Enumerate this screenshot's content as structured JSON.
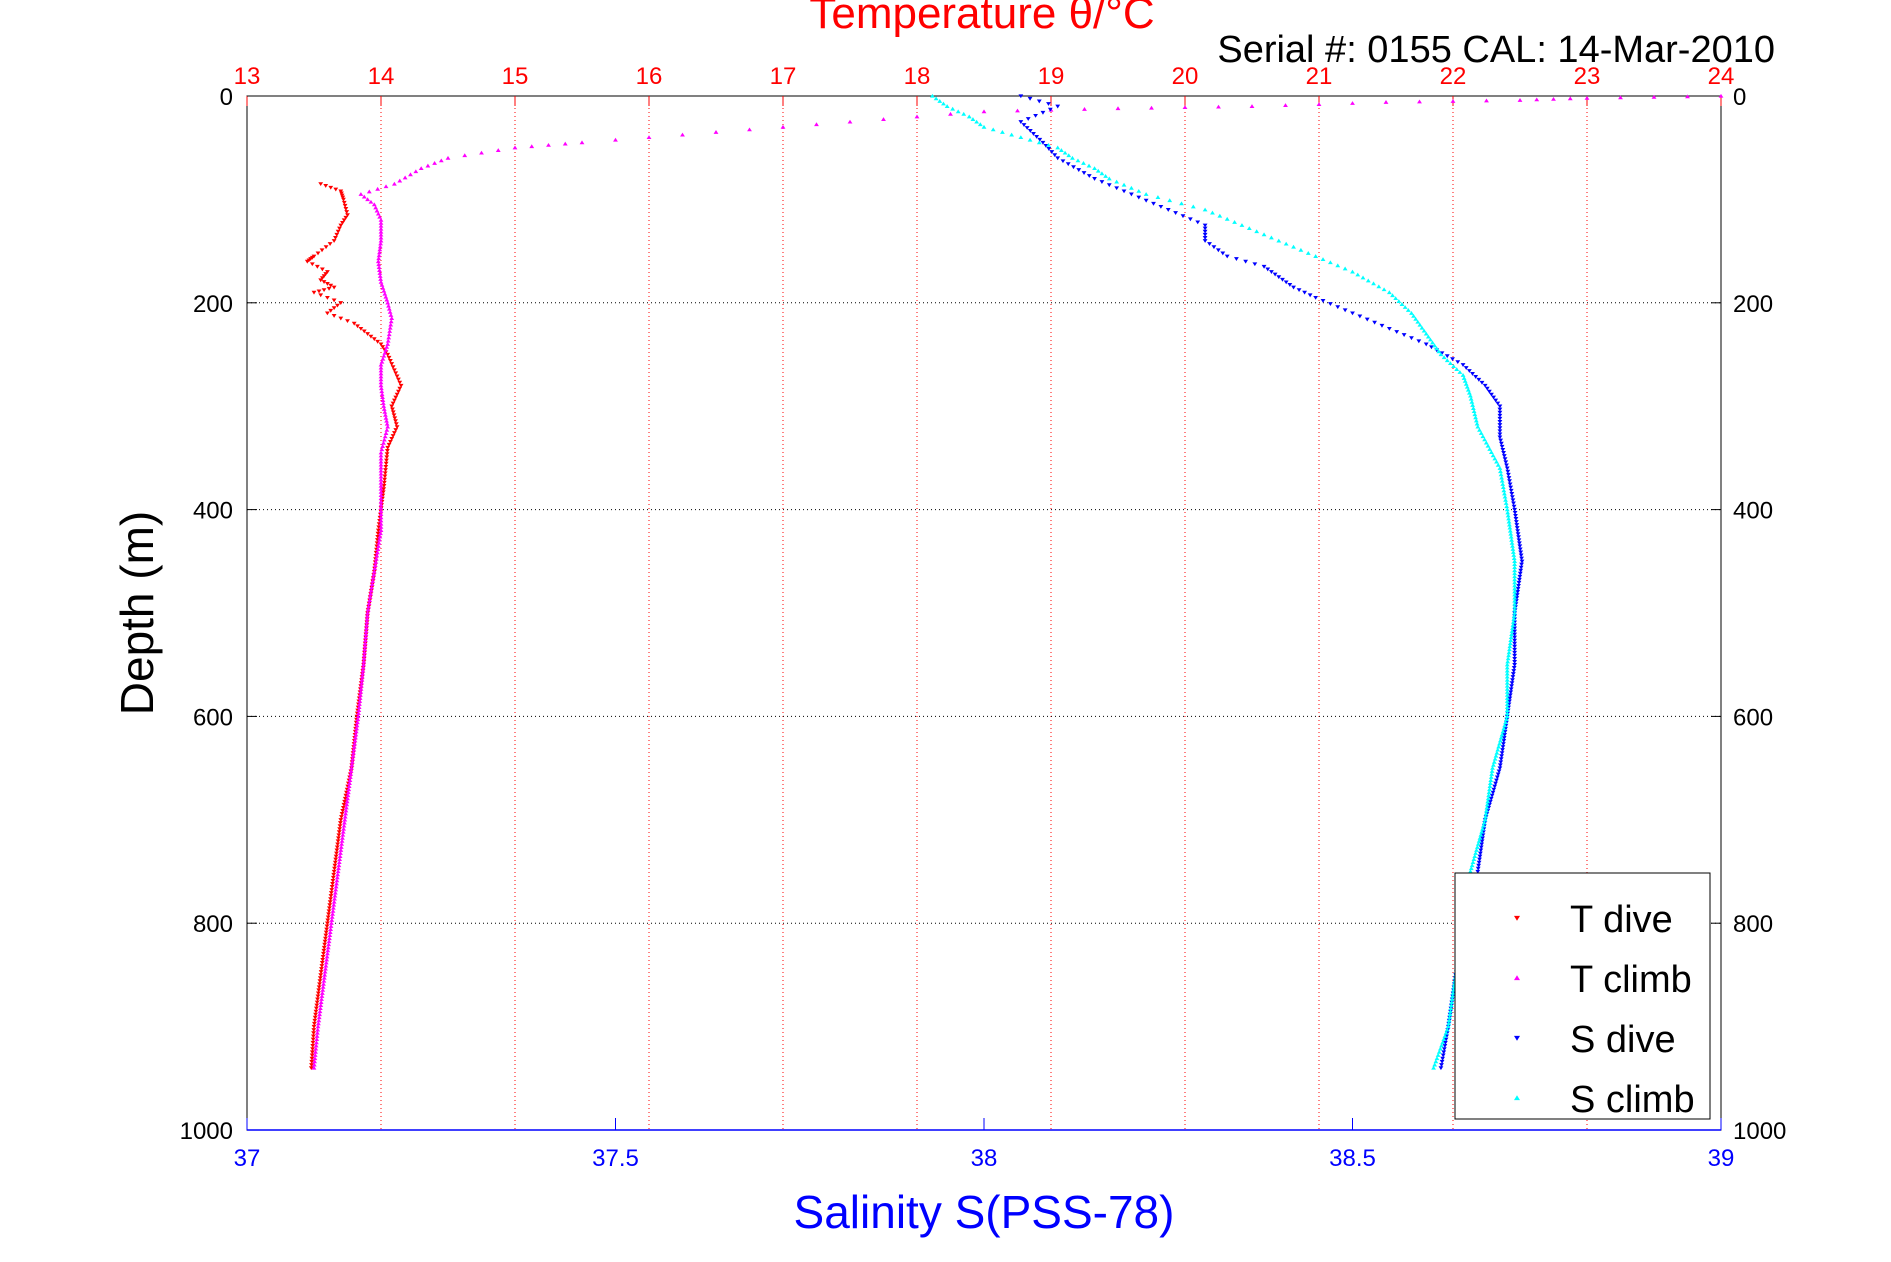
{
  "chart_data": {
    "type": "scatter",
    "title": "Temperature θ/°C",
    "subtitle": "Serial #: 0155  CAL: 14-Mar-2010",
    "xlabel": "Salinity S(PSS-78)",
    "ylabel": "Depth (m)",
    "top_axis": {
      "label": "Temperature θ/°C",
      "range": [
        13,
        24
      ],
      "ticks": [
        "13",
        "14",
        "15",
        "16",
        "17",
        "18",
        "19",
        "20",
        "21",
        "22",
        "23",
        "24"
      ],
      "color": "#ff0000"
    },
    "bottom_axis": {
      "label": "Salinity S(PSS-78)",
      "range": [
        37,
        39
      ],
      "ticks": [
        "37",
        "37.5",
        "38",
        "38.5",
        "39"
      ],
      "color": "#0000ff"
    },
    "y_axis": {
      "range": [
        0,
        1000
      ],
      "reversed": true,
      "ticks": [
        "0",
        "200",
        "400",
        "600",
        "800",
        "1000"
      ]
    },
    "grid": true,
    "legend": {
      "placement": "bottom-right",
      "entries": [
        "T dive",
        "T climb",
        "S dive",
        "S climb"
      ]
    },
    "series": [
      {
        "name": "T dive",
        "axis": "temperature",
        "color": "#ff0000",
        "marker": "triangle-down",
        "points": [
          [
            13.55,
            85
          ],
          [
            13.7,
            92
          ],
          [
            13.72,
            100
          ],
          [
            13.75,
            115
          ],
          [
            13.7,
            125
          ],
          [
            13.65,
            140
          ],
          [
            13.5,
            155
          ],
          [
            13.45,
            160
          ],
          [
            13.6,
            170
          ],
          [
            13.55,
            178
          ],
          [
            13.65,
            185
          ],
          [
            13.5,
            190
          ],
          [
            13.7,
            200
          ],
          [
            13.6,
            210
          ],
          [
            13.8,
            220
          ],
          [
            13.9,
            230
          ],
          [
            14.0,
            240
          ],
          [
            14.05,
            250
          ],
          [
            14.1,
            265
          ],
          [
            14.15,
            280
          ],
          [
            14.08,
            300
          ],
          [
            14.12,
            320
          ],
          [
            14.05,
            340
          ],
          [
            14.02,
            380
          ],
          [
            13.98,
            420
          ],
          [
            13.95,
            460
          ],
          [
            13.9,
            500
          ],
          [
            13.87,
            550
          ],
          [
            13.82,
            600
          ],
          [
            13.78,
            650
          ],
          [
            13.7,
            700
          ],
          [
            13.65,
            750
          ],
          [
            13.6,
            800
          ],
          [
            13.55,
            850
          ],
          [
            13.5,
            900
          ],
          [
            13.48,
            940
          ]
        ]
      },
      {
        "name": "T climb",
        "axis": "temperature",
        "color": "#ff00ff",
        "marker": "triangle-up",
        "points": [
          [
            24,
            0
          ],
          [
            23.0,
            2
          ],
          [
            22.5,
            4
          ],
          [
            21.5,
            6
          ],
          [
            20.5,
            10
          ],
          [
            19.5,
            12
          ],
          [
            18.5,
            15
          ],
          [
            17.5,
            25
          ],
          [
            16.5,
            35
          ],
          [
            15.5,
            45
          ],
          [
            15.0,
            50
          ],
          [
            14.5,
            60
          ],
          [
            14.3,
            70
          ],
          [
            14.1,
            85
          ],
          [
            13.85,
            95
          ],
          [
            13.95,
            105
          ],
          [
            14.0,
            120
          ],
          [
            14.0,
            140
          ],
          [
            13.98,
            160
          ],
          [
            14.0,
            180
          ],
          [
            14.05,
            200
          ],
          [
            14.08,
            215
          ],
          [
            14.05,
            240
          ],
          [
            14.0,
            260
          ],
          [
            14.0,
            280
          ],
          [
            14.02,
            300
          ],
          [
            14.05,
            320
          ],
          [
            14.0,
            345
          ],
          [
            14.0,
            380
          ],
          [
            14.0,
            420
          ],
          [
            13.95,
            460
          ],
          [
            13.9,
            500
          ],
          [
            13.87,
            550
          ],
          [
            13.83,
            600
          ],
          [
            13.78,
            650
          ],
          [
            13.73,
            700
          ],
          [
            13.68,
            750
          ],
          [
            13.63,
            800
          ],
          [
            13.58,
            850
          ],
          [
            13.53,
            900
          ],
          [
            13.5,
            940
          ]
        ]
      },
      {
        "name": "S dive",
        "axis": "salinity",
        "color": "#0000ff",
        "marker": "triangle-down",
        "points": [
          [
            38.05,
            0
          ],
          [
            38.1,
            10
          ],
          [
            38.05,
            25
          ],
          [
            38.08,
            45
          ],
          [
            38.1,
            60
          ],
          [
            38.15,
            80
          ],
          [
            38.2,
            95
          ],
          [
            38.25,
            110
          ],
          [
            38.3,
            125
          ],
          [
            38.3,
            140
          ],
          [
            38.33,
            155
          ],
          [
            38.38,
            165
          ],
          [
            38.4,
            175
          ],
          [
            38.42,
            185
          ],
          [
            38.45,
            195
          ],
          [
            38.5,
            210
          ],
          [
            38.55,
            225
          ],
          [
            38.6,
            240
          ],
          [
            38.65,
            260
          ],
          [
            38.68,
            280
          ],
          [
            38.7,
            300
          ],
          [
            38.7,
            330
          ],
          [
            38.71,
            360
          ],
          [
            38.72,
            400
          ],
          [
            38.73,
            450
          ],
          [
            38.72,
            500
          ],
          [
            38.72,
            550
          ],
          [
            38.71,
            600
          ],
          [
            38.7,
            650
          ],
          [
            38.68,
            700
          ],
          [
            38.67,
            750
          ],
          [
            38.66,
            800
          ],
          [
            38.64,
            850
          ],
          [
            38.63,
            900
          ],
          [
            38.62,
            940
          ]
        ]
      },
      {
        "name": "S climb",
        "axis": "salinity",
        "color": "#00ffff",
        "marker": "triangle-up",
        "points": [
          [
            37.93,
            0
          ],
          [
            37.95,
            10
          ],
          [
            37.98,
            20
          ],
          [
            38.0,
            30
          ],
          [
            38.05,
            40
          ],
          [
            38.1,
            50
          ],
          [
            38.12,
            60
          ],
          [
            38.15,
            70
          ],
          [
            38.17,
            80
          ],
          [
            38.22,
            95
          ],
          [
            38.3,
            110
          ],
          [
            38.35,
            125
          ],
          [
            38.4,
            140
          ],
          [
            38.45,
            155
          ],
          [
            38.5,
            170
          ],
          [
            38.55,
            190
          ],
          [
            38.58,
            210
          ],
          [
            38.6,
            230
          ],
          [
            38.62,
            250
          ],
          [
            38.65,
            270
          ],
          [
            38.66,
            290
          ],
          [
            38.67,
            320
          ],
          [
            38.7,
            360
          ],
          [
            38.71,
            400
          ],
          [
            38.72,
            450
          ],
          [
            38.72,
            500
          ],
          [
            38.71,
            550
          ],
          [
            38.71,
            600
          ],
          [
            38.69,
            650
          ],
          [
            38.68,
            700
          ],
          [
            38.66,
            750
          ],
          [
            38.65,
            800
          ],
          [
            38.64,
            850
          ],
          [
            38.63,
            900
          ],
          [
            38.61,
            940
          ]
        ]
      }
    ]
  }
}
